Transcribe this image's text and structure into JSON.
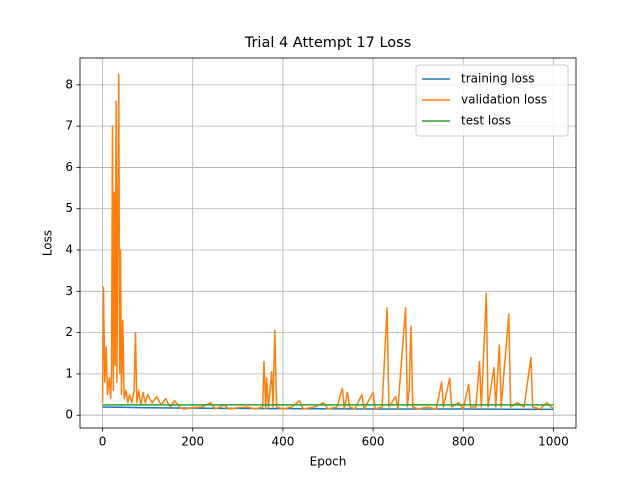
{
  "chart_data": {
    "type": "line",
    "title": "Trial 4 Attempt 17 Loss",
    "x_label": "Epoch",
    "y_label": "Loss",
    "xlim": [
      -50,
      1050
    ],
    "ylim": [
      -0.31,
      8.65
    ],
    "xticks": [
      0,
      200,
      400,
      600,
      800,
      1000
    ],
    "yticks": [
      0,
      1,
      2,
      3,
      4,
      5,
      6,
      7,
      8
    ],
    "grid": true,
    "legend": "upper right",
    "series": [
      {
        "name": "training loss",
        "color": "#1f77b4",
        "x": [
          0,
          100,
          200,
          400,
          600,
          800,
          1000
        ],
        "values": [
          0.2,
          0.18,
          0.17,
          0.16,
          0.15,
          0.15,
          0.14
        ]
      },
      {
        "name": "validation loss",
        "color": "#ff7f0e",
        "x": [
          0,
          2,
          5,
          8,
          11,
          15,
          18,
          20,
          22,
          24,
          26,
          28,
          30,
          32,
          34,
          36,
          38,
          40,
          42,
          45,
          48,
          52,
          56,
          60,
          65,
          70,
          73,
          76,
          80,
          85,
          90,
          95,
          100,
          110,
          120,
          130,
          140,
          150,
          160,
          170,
          180,
          200,
          220,
          240,
          250,
          270,
          280,
          300,
          320,
          340,
          355,
          358,
          362,
          364,
          368,
          375,
          378,
          382,
          386,
          400,
          420,
          437,
          445,
          470,
          490,
          500,
          520,
          532,
          536,
          543,
          548,
          560,
          575,
          580,
          600,
          605,
          620,
          631,
          635,
          650,
          655,
          672,
          676,
          680,
          684,
          688,
          700,
          720,
          740,
          752,
          756,
          770,
          774,
          790,
          800,
          812,
          816,
          828,
          836,
          840,
          851,
          855,
          868,
          872,
          880,
          884,
          901,
          905,
          920,
          935,
          950,
          954,
          970,
          985,
          1000
        ],
        "values": [
          0.3,
          3.1,
          0.8,
          1.65,
          0.5,
          0.9,
          0.4,
          1.1,
          7.0,
          0.6,
          5.4,
          1.2,
          7.6,
          0.8,
          5.0,
          8.25,
          1.0,
          4.0,
          0.5,
          2.3,
          0.4,
          0.6,
          0.3,
          0.5,
          0.3,
          0.6,
          2.0,
          0.3,
          0.6,
          0.25,
          0.55,
          0.3,
          0.5,
          0.3,
          0.45,
          0.25,
          0.4,
          0.2,
          0.35,
          0.2,
          0.15,
          0.18,
          0.2,
          0.3,
          0.15,
          0.25,
          0.15,
          0.18,
          0.2,
          0.15,
          0.2,
          1.3,
          0.15,
          0.9,
          0.2,
          1.05,
          0.2,
          2.05,
          0.2,
          0.15,
          0.2,
          0.35,
          0.15,
          0.2,
          0.3,
          0.15,
          0.2,
          0.65,
          0.15,
          0.55,
          0.2,
          0.15,
          0.5,
          0.15,
          0.55,
          0.15,
          0.2,
          2.6,
          0.2,
          0.45,
          0.15,
          2.6,
          0.2,
          0.6,
          2.15,
          0.2,
          0.15,
          0.2,
          0.15,
          0.8,
          0.2,
          0.9,
          0.2,
          0.3,
          0.15,
          0.75,
          0.2,
          0.2,
          1.3,
          0.2,
          2.95,
          0.2,
          1.15,
          0.2,
          1.7,
          0.2,
          2.45,
          0.2,
          0.3,
          0.2,
          1.4,
          0.2,
          0.15,
          0.3,
          0.15
        ]
      },
      {
        "name": "test loss",
        "color": "#2ca02c",
        "x": [
          0,
          1000
        ],
        "values": [
          0.25,
          0.25
        ]
      }
    ]
  }
}
